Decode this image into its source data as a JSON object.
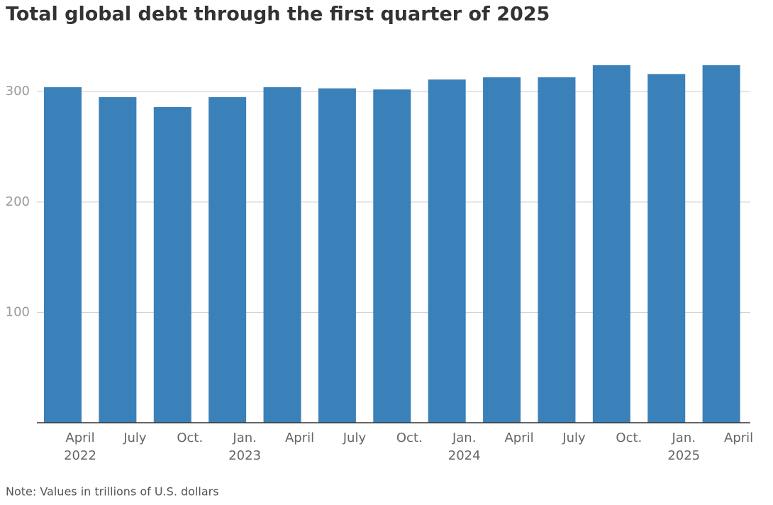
{
  "chart_data": {
    "type": "bar",
    "title": "Total global debt through the first quarter of 2025",
    "note": "Note: Values in trillions of U.S. dollars",
    "categories": [
      "April",
      "July",
      "Oct.",
      "Jan.",
      "April",
      "July",
      "Oct.",
      "Jan.",
      "April",
      "July",
      "Oct.",
      "Jan.",
      "April"
    ],
    "category_years": [
      "2022",
      null,
      null,
      "2023",
      null,
      null,
      null,
      "2024",
      null,
      null,
      null,
      "2025",
      null
    ],
    "values": [
      304,
      295,
      286,
      295,
      304,
      303,
      302,
      311,
      313,
      313,
      324,
      316,
      324
    ],
    "color": "#3a80b9",
    "ylim": [
      0,
      340
    ],
    "yticks": [
      100,
      200,
      300
    ],
    "grid": true
  }
}
